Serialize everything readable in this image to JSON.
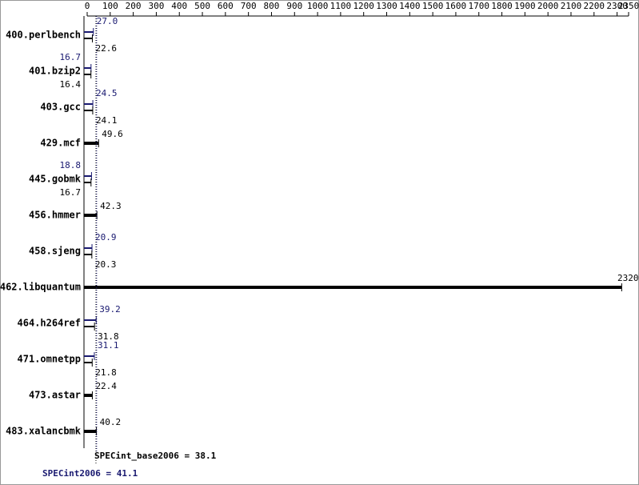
{
  "chart_data": {
    "type": "bar",
    "orientation": "horizontal",
    "categories": [
      "400.perlbench",
      "401.bzip2",
      "403.gcc",
      "429.mcf",
      "445.gobmk",
      "456.hmmer",
      "458.sjeng",
      "462.libquantum",
      "464.h264ref",
      "471.omnetpp",
      "473.astar",
      "483.xalancbmk"
    ],
    "series": [
      {
        "name": "peak",
        "color": "#191970",
        "values": [
          27.0,
          16.7,
          24.5,
          null,
          18.8,
          null,
          20.9,
          null,
          39.2,
          31.1,
          null,
          null
        ],
        "value_labels": [
          "27.0",
          "16.7",
          "24.5",
          null,
          "18.8",
          null,
          "20.9",
          null,
          "39.2",
          "31.1",
          null,
          null
        ]
      },
      {
        "name": "base",
        "color": "#000000",
        "values": [
          22.6,
          16.4,
          24.1,
          49.6,
          16.7,
          42.3,
          20.3,
          2320,
          31.8,
          21.8,
          22.4,
          40.2
        ],
        "value_labels": [
          "22.6",
          "16.4",
          "24.1",
          "49.6",
          "16.7",
          "42.3",
          "20.3",
          "2320",
          "31.8",
          "21.8",
          "22.4",
          "40.2"
        ]
      }
    ],
    "xlim": [
      0,
      2350
    ],
    "xticks": [
      0,
      100,
      200,
      300,
      400,
      500,
      600,
      700,
      800,
      900,
      1000,
      1100,
      1200,
      1300,
      1400,
      1500,
      1600,
      1700,
      1800,
      1900,
      2000,
      2100,
      2200,
      2300,
      2350
    ],
    "base_mean": {
      "value": 38.1,
      "label": "SPECint_base2006 = 38.1",
      "color": "#000000"
    },
    "peak_mean": {
      "value": 41.1,
      "label": "SPECint2006 = 41.1",
      "color": "#191970"
    }
  }
}
